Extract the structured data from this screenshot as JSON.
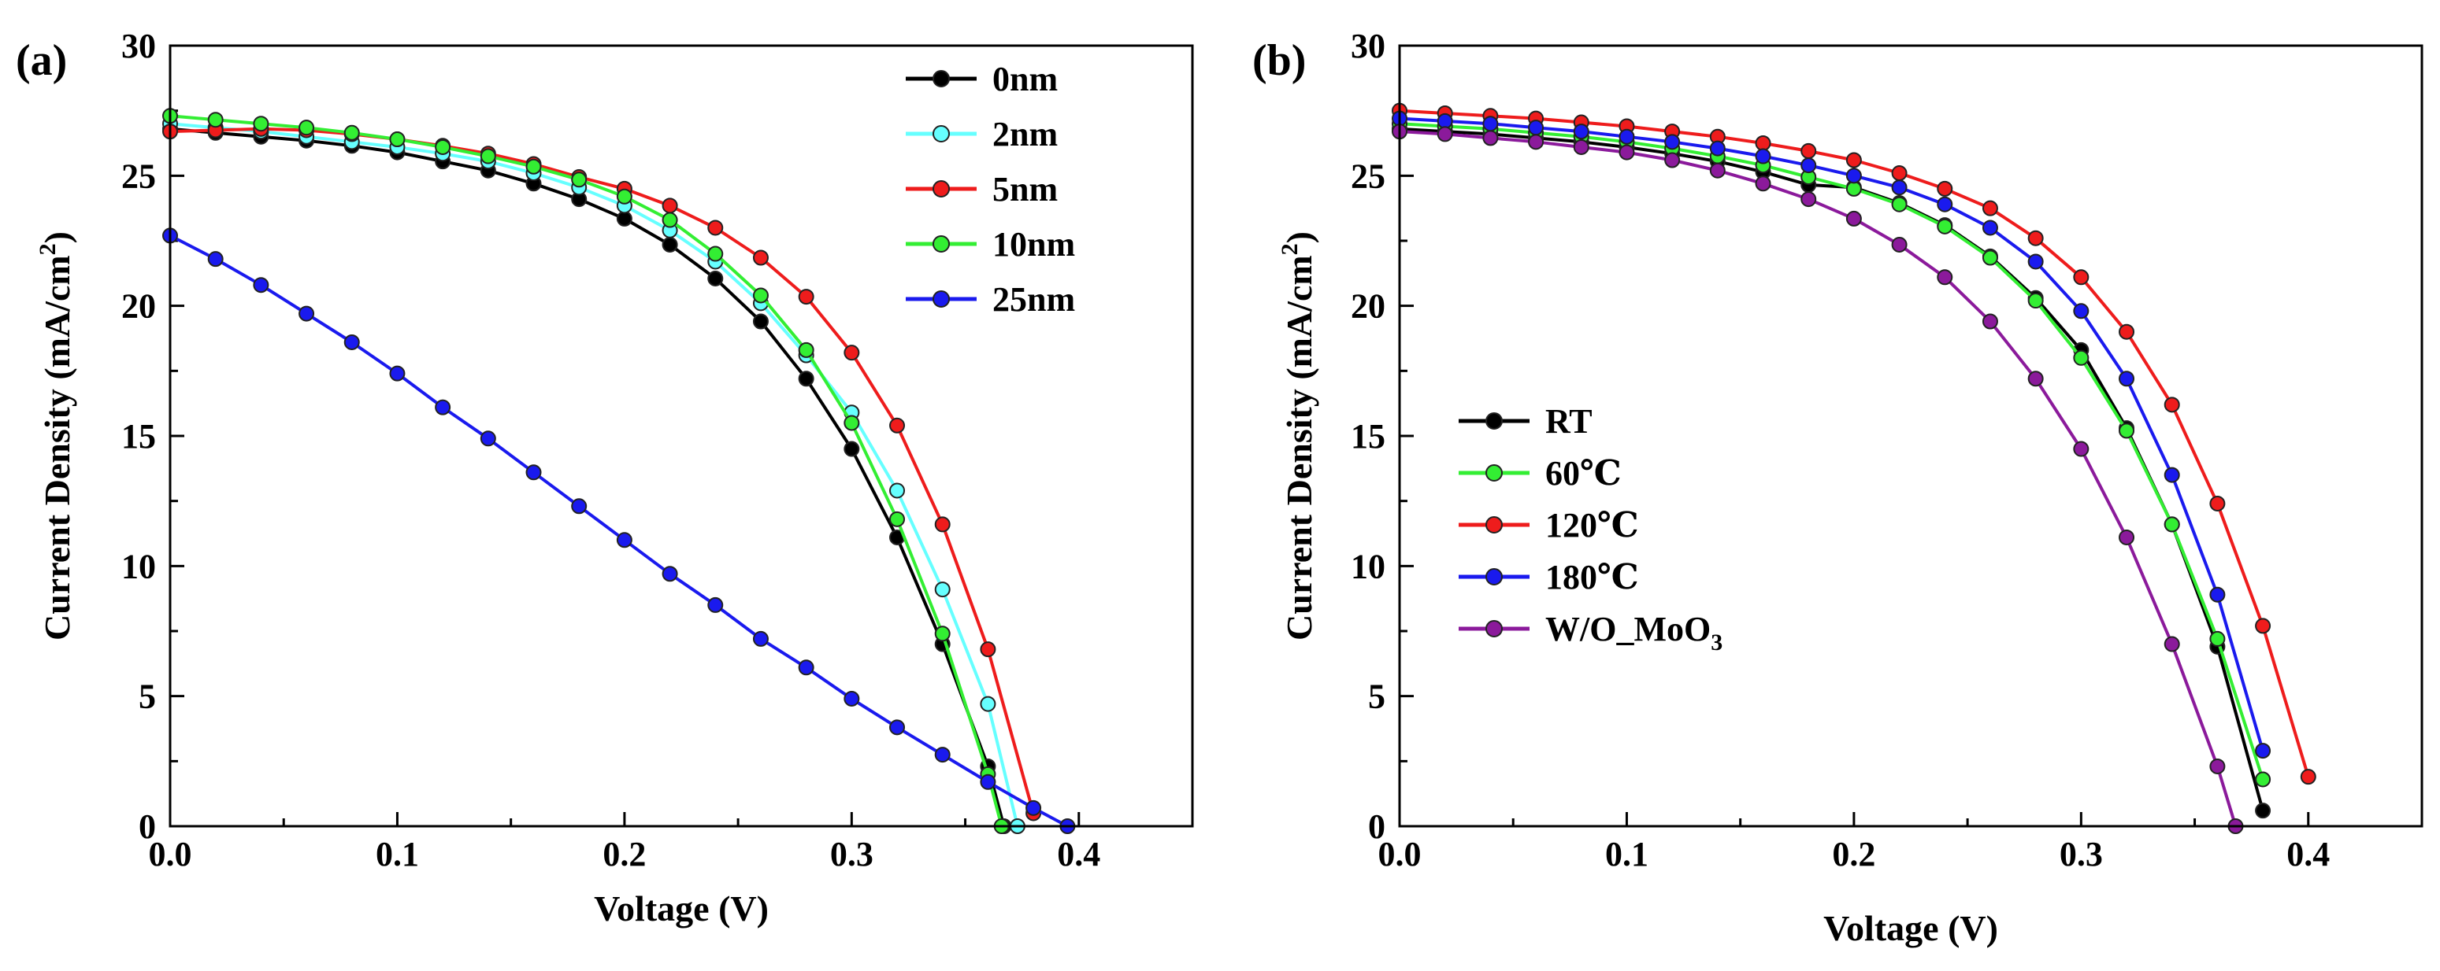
{
  "chart_data": [
    {
      "type": "line",
      "panel_label": "(a)",
      "title": "",
      "xlabel": "Voltage (V)",
      "ylabel": "Current Density (mA/cm",
      "ylabel_sup": "2",
      "ylabel_close": ")",
      "xlim": [
        0,
        0.45
      ],
      "ylim": [
        0,
        30
      ],
      "xticks": [
        0.0,
        0.1,
        0.2,
        0.3,
        0.4
      ],
      "xtick_labels": [
        "0.0",
        "0.1",
        "0.2",
        "0.3",
        "0.4"
      ],
      "yticks": [
        0,
        5,
        10,
        15,
        20,
        25,
        30
      ],
      "ytick_labels": [
        "0",
        "5",
        "10",
        "15",
        "20",
        "25",
        "30"
      ],
      "legend_position": "top-right",
      "series": [
        {
          "name": "0nm",
          "label": "0nm",
          "label_sub": "",
          "color": "#000000",
          "x": [
            0.0,
            0.02,
            0.04,
            0.06,
            0.08,
            0.1,
            0.12,
            0.14,
            0.16,
            0.18,
            0.2,
            0.22,
            0.24,
            0.26,
            0.28,
            0.3,
            0.32,
            0.34,
            0.36,
            0.367
          ],
          "y": [
            26.8,
            26.65,
            26.5,
            26.35,
            26.15,
            25.9,
            25.55,
            25.2,
            24.7,
            24.1,
            23.35,
            22.35,
            21.05,
            19.4,
            17.2,
            14.5,
            11.1,
            7.0,
            2.3,
            0.0
          ]
        },
        {
          "name": "2nm",
          "label": "2nm",
          "label_sub": "",
          "color": "#66ffff",
          "x": [
            0.0,
            0.02,
            0.04,
            0.06,
            0.08,
            0.1,
            0.12,
            0.14,
            0.16,
            0.18,
            0.2,
            0.22,
            0.24,
            0.26,
            0.28,
            0.3,
            0.32,
            0.34,
            0.36,
            0.373
          ],
          "y": [
            27.0,
            26.85,
            26.7,
            26.5,
            26.3,
            26.1,
            25.85,
            25.55,
            25.1,
            24.55,
            23.85,
            22.9,
            21.7,
            20.1,
            18.1,
            15.9,
            12.9,
            9.1,
            4.7,
            0.0
          ]
        },
        {
          "name": "5nm",
          "label": "5nm",
          "label_sub": "",
          "color": "#ee1c1c",
          "x": [
            0.0,
            0.02,
            0.04,
            0.06,
            0.08,
            0.1,
            0.12,
            0.14,
            0.16,
            0.18,
            0.2,
            0.22,
            0.24,
            0.26,
            0.28,
            0.3,
            0.32,
            0.34,
            0.36,
            0.38
          ],
          "y": [
            26.7,
            26.75,
            26.8,
            26.75,
            26.6,
            26.4,
            26.15,
            25.85,
            25.45,
            24.95,
            24.5,
            23.85,
            23.0,
            21.85,
            20.35,
            18.2,
            15.4,
            11.6,
            6.8,
            0.5
          ]
        },
        {
          "name": "10nm",
          "label": "10nm",
          "label_sub": "",
          "color": "#33ee33",
          "x": [
            0.0,
            0.02,
            0.04,
            0.06,
            0.08,
            0.1,
            0.12,
            0.14,
            0.16,
            0.18,
            0.2,
            0.22,
            0.24,
            0.26,
            0.28,
            0.3,
            0.32,
            0.34,
            0.36,
            0.366
          ],
          "y": [
            27.3,
            27.15,
            27.0,
            26.85,
            26.65,
            26.4,
            26.1,
            25.75,
            25.35,
            24.85,
            24.2,
            23.3,
            22.0,
            20.4,
            18.3,
            15.5,
            11.8,
            7.4,
            2.0,
            0.0
          ]
        },
        {
          "name": "25nm",
          "label": "25nm",
          "label_sub": "",
          "color": "#1a1aee",
          "x": [
            0.0,
            0.02,
            0.04,
            0.06,
            0.08,
            0.1,
            0.12,
            0.14,
            0.16,
            0.18,
            0.2,
            0.22,
            0.24,
            0.26,
            0.28,
            0.3,
            0.32,
            0.34,
            0.36,
            0.38,
            0.395
          ],
          "y": [
            22.7,
            21.8,
            20.8,
            19.7,
            18.6,
            17.4,
            16.1,
            14.9,
            13.6,
            12.3,
            11.0,
            9.7,
            8.5,
            7.2,
            6.1,
            4.9,
            3.8,
            2.75,
            1.7,
            0.7,
            0.0
          ]
        }
      ]
    },
    {
      "type": "line",
      "panel_label": "(b)",
      "title": "",
      "xlabel": "Voltage (V)",
      "ylabel": "Current Density (mA/cm",
      "ylabel_sup": "2",
      "ylabel_close": ")",
      "xlim": [
        0,
        0.45
      ],
      "ylim": [
        0,
        30
      ],
      "xticks": [
        0.0,
        0.1,
        0.2,
        0.3,
        0.4
      ],
      "xtick_labels": [
        "0.0",
        "0.1",
        "0.2",
        "0.3",
        "0.4"
      ],
      "yticks": [
        0,
        5,
        10,
        15,
        20,
        25,
        30
      ],
      "ytick_labels": [
        "0",
        "5",
        "10",
        "15",
        "20",
        "25",
        "30"
      ],
      "legend_position": "center-left",
      "series": [
        {
          "name": "RT",
          "label": "RT",
          "label_sub": "",
          "color": "#000000",
          "x": [
            0.0,
            0.02,
            0.04,
            0.06,
            0.08,
            0.1,
            0.12,
            0.14,
            0.16,
            0.18,
            0.2,
            0.22,
            0.24,
            0.26,
            0.28,
            0.3,
            0.32,
            0.34,
            0.36,
            0.38
          ],
          "y": [
            26.8,
            26.7,
            26.6,
            26.45,
            26.3,
            26.1,
            25.85,
            25.55,
            25.15,
            24.65,
            24.55,
            23.95,
            23.1,
            21.9,
            20.3,
            18.3,
            15.3,
            11.6,
            6.9,
            0.6
          ]
        },
        {
          "name": "60C",
          "label": "60℃",
          "label_sub": "",
          "color": "#33ee33",
          "x": [
            0.0,
            0.02,
            0.04,
            0.06,
            0.08,
            0.1,
            0.12,
            0.14,
            0.16,
            0.18,
            0.2,
            0.22,
            0.24,
            0.26,
            0.28,
            0.3,
            0.32,
            0.34,
            0.36,
            0.38
          ],
          "y": [
            27.0,
            26.9,
            26.8,
            26.65,
            26.5,
            26.3,
            26.05,
            25.75,
            25.4,
            24.95,
            24.5,
            23.9,
            23.05,
            21.85,
            20.2,
            18.0,
            15.2,
            11.6,
            7.2,
            1.8
          ]
        },
        {
          "name": "120C",
          "label": "120℃",
          "label_sub": "",
          "color": "#ee1c1c",
          "x": [
            0.0,
            0.02,
            0.04,
            0.06,
            0.08,
            0.1,
            0.12,
            0.14,
            0.16,
            0.18,
            0.2,
            0.22,
            0.24,
            0.26,
            0.28,
            0.3,
            0.32,
            0.34,
            0.36,
            0.38,
            0.4
          ],
          "y": [
            27.5,
            27.4,
            27.3,
            27.2,
            27.05,
            26.9,
            26.7,
            26.5,
            26.25,
            25.95,
            25.6,
            25.1,
            24.5,
            23.75,
            22.6,
            21.1,
            19.0,
            16.2,
            12.4,
            7.7,
            1.9
          ]
        },
        {
          "name": "180C",
          "label": "180℃",
          "label_sub": "",
          "color": "#1a1aee",
          "x": [
            0.0,
            0.02,
            0.04,
            0.06,
            0.08,
            0.1,
            0.12,
            0.14,
            0.16,
            0.18,
            0.2,
            0.22,
            0.24,
            0.26,
            0.28,
            0.3,
            0.32,
            0.34,
            0.36,
            0.38
          ],
          "y": [
            27.2,
            27.1,
            27.0,
            26.85,
            26.7,
            26.5,
            26.3,
            26.05,
            25.75,
            25.4,
            25.0,
            24.55,
            23.9,
            23.0,
            21.7,
            19.8,
            17.2,
            13.5,
            8.9,
            2.9
          ]
        },
        {
          "name": "W/O_MoO3",
          "label": "W/O_MoO",
          "label_sub": "3",
          "color": "#8b1a9b",
          "x": [
            0.0,
            0.02,
            0.04,
            0.06,
            0.08,
            0.1,
            0.12,
            0.14,
            0.16,
            0.18,
            0.2,
            0.22,
            0.24,
            0.26,
            0.28,
            0.3,
            0.32,
            0.34,
            0.36,
            0.368
          ],
          "y": [
            26.7,
            26.6,
            26.45,
            26.3,
            26.1,
            25.9,
            25.6,
            25.2,
            24.7,
            24.1,
            23.35,
            22.35,
            21.1,
            19.4,
            17.2,
            14.5,
            11.1,
            7.0,
            2.3,
            0.0
          ]
        }
      ]
    }
  ]
}
